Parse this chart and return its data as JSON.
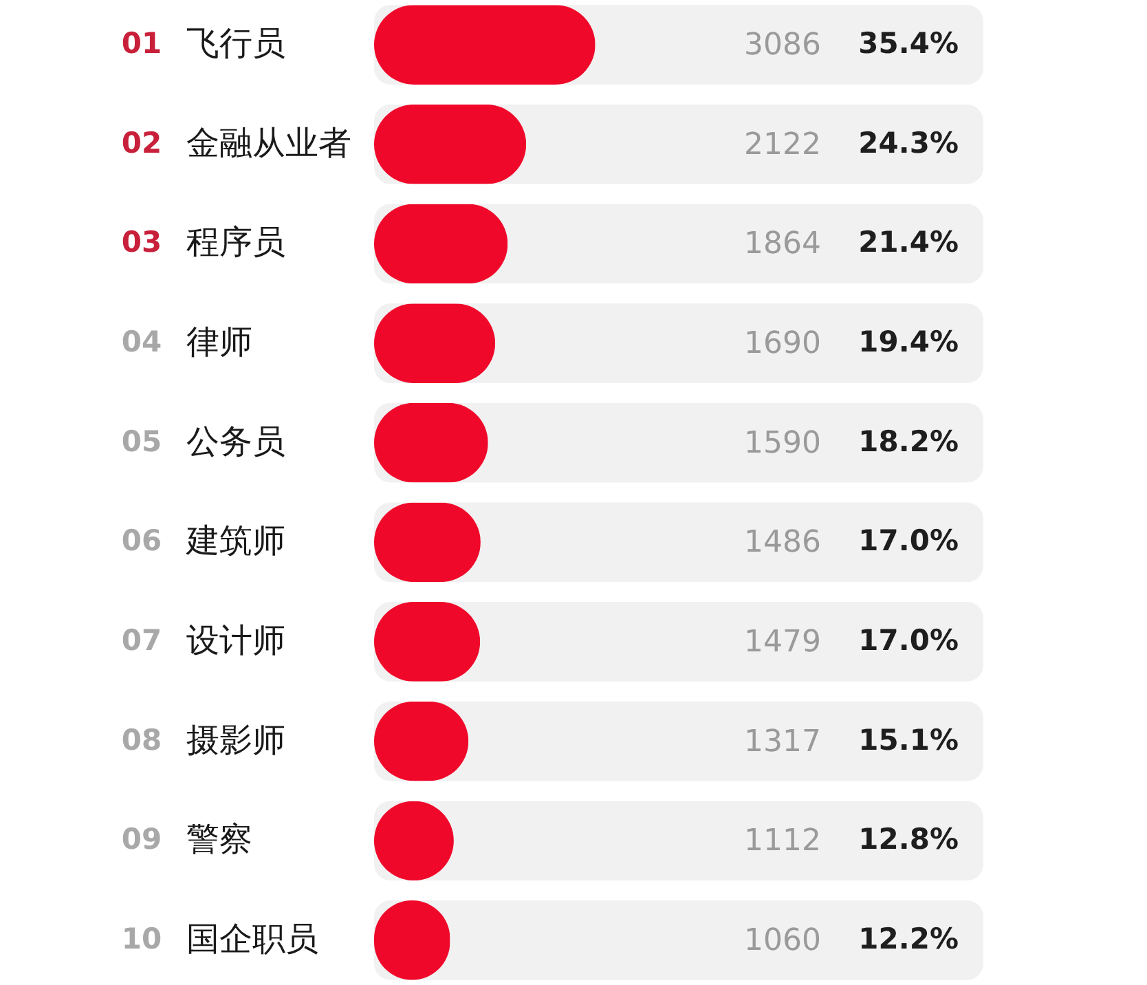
{
  "chart_data": {
    "type": "bar",
    "orientation": "horizontal",
    "categories": [
      "飞行员",
      "金融从业者",
      "程序员",
      "律师",
      "公务员",
      "建筑师",
      "设计师",
      "摄影师",
      "警察",
      "国企职员"
    ],
    "values": [
      3086,
      2122,
      1864,
      1690,
      1590,
      1486,
      1479,
      1317,
      1112,
      1060
    ],
    "color": "#f0082a",
    "data_labels": true,
    "xlim": [
      0,
      8500
    ],
    "tick_labels": "y",
    "annotations": [
      "01",
      "02",
      "03",
      "04",
      "05",
      "06",
      "07",
      "08",
      "09",
      "10",
      "35.4%",
      "24.3%",
      "21.4%",
      "19.4%",
      "18.2%",
      "17.0%",
      "17.0%",
      "15.1%",
      "12.8%",
      "12.2%"
    ]
  }
}
